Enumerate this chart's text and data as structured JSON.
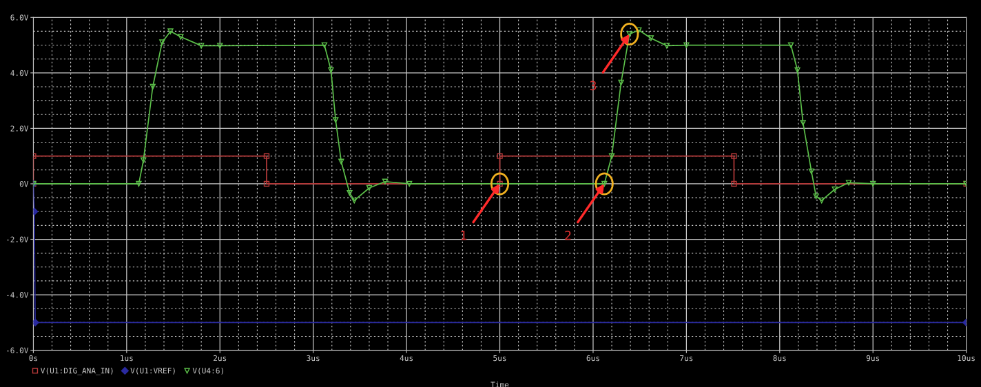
{
  "chart_data": {
    "type": "line",
    "xlabel": "Time",
    "xlim": [
      0,
      10
    ],
    "ylim": [
      -6,
      6
    ],
    "xticks": [
      {
        "value": 0,
        "label": "0s"
      },
      {
        "value": 1,
        "label": "1us"
      },
      {
        "value": 2,
        "label": "2us"
      },
      {
        "value": 3,
        "label": "3us"
      },
      {
        "value": 4,
        "label": "4us"
      },
      {
        "value": 5,
        "label": "5us"
      },
      {
        "value": 6,
        "label": "6us"
      },
      {
        "value": 7,
        "label": "7us"
      },
      {
        "value": 8,
        "label": "8us"
      },
      {
        "value": 9,
        "label": "9us"
      },
      {
        "value": 10,
        "label": "10us"
      }
    ],
    "yticks": [
      {
        "value": -6,
        "label": "-6.0V"
      },
      {
        "value": -4,
        "label": "-4.0V"
      },
      {
        "value": -2,
        "label": "-2.0V"
      },
      {
        "value": 0,
        "label": "0V"
      },
      {
        "value": 2,
        "label": "2.0V"
      },
      {
        "value": 4,
        "label": "4.0V"
      },
      {
        "value": 6,
        "label": "6.0V"
      }
    ],
    "grid": true,
    "legend": "bottom left",
    "line_style": "solid",
    "series": [
      {
        "name": "V(U1:DIG_ANA_IN)",
        "color": "#b83a3a",
        "marker": "square",
        "x": [
          0,
          0,
          2.5,
          2.5,
          5.0,
          5.0,
          7.51,
          7.51,
          10
        ],
        "values": [
          0,
          1,
          1,
          0,
          0,
          1,
          1,
          0,
          0
        ]
      },
      {
        "name": "V(U1:VREF)",
        "color": "#2a2aa0",
        "marker": "diamond",
        "x": [
          0,
          0.01,
          0.02,
          10
        ],
        "values": [
          0,
          -1.0,
          -5,
          -5
        ]
      },
      {
        "name": "V(U4:6)",
        "color": "#5cc04a",
        "marker": "triangle",
        "x": [
          0,
          1.13,
          1.18,
          1.28,
          1.38,
          1.47,
          1.58,
          1.8,
          2.0,
          3.12,
          3.19,
          3.24,
          3.3,
          3.39,
          3.44,
          3.6,
          3.77,
          4.03,
          6.12,
          6.2,
          6.3,
          6.39,
          6.49,
          6.62,
          6.79,
          7.0,
          8.12,
          8.19,
          8.25,
          8.34,
          8.39,
          8.45,
          8.59,
          8.74,
          9.0,
          10
        ],
        "values": [
          0,
          0,
          0.85,
          3.5,
          5.1,
          5.5,
          5.3,
          4.98,
          4.98,
          5.0,
          4.1,
          2.3,
          0.8,
          -0.33,
          -0.6,
          -0.15,
          0.08,
          0.0,
          0,
          1.0,
          3.65,
          5.4,
          5.54,
          5.25,
          4.98,
          5.0,
          5.0,
          4.1,
          2.2,
          0.45,
          -0.45,
          -0.6,
          -0.2,
          0.04,
          0,
          0
        ]
      }
    ],
    "annotations": [
      {
        "text": "1",
        "x": 5.0,
        "y": 0.0
      },
      {
        "text": "2",
        "x": 6.12,
        "y": 0.0
      },
      {
        "text": "3",
        "x": 6.39,
        "y": 5.4
      }
    ]
  }
}
